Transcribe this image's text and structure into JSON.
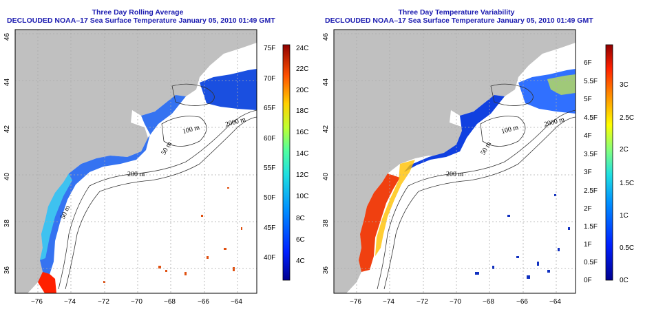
{
  "left": {
    "title": "Three Day Rolling Average",
    "subtitle": "DECLOUDED NOAA–17 Sea Surface Temperature January 05, 2010 01:49 GMT",
    "contour_labels": [
      "100 m",
      "2000 m",
      "50 m",
      "200 m",
      "50 m"
    ],
    "colorbar": {
      "fahrenheit": [
        "75F",
        "70F",
        "65F",
        "60F",
        "55F",
        "50F",
        "45F",
        "40F"
      ],
      "celsius": [
        "24C",
        "22C",
        "20C",
        "18C",
        "16C",
        "14C",
        "12C",
        "10C",
        "8C",
        "6C",
        "4C"
      ]
    }
  },
  "right": {
    "title": "Three Day Temperature Variability",
    "subtitle": "DECLOUDED NOAA–17 Sea Surface Temperature January 05, 2010 01:49 GMT",
    "contour_labels": [
      "100 m",
      "2000 m",
      "50 m",
      "200 m"
    ],
    "colorbar": {
      "fahrenheit": [
        "6F",
        "5.5F",
        "5F",
        "4.5F",
        "4F",
        "3.5F",
        "3F",
        "2.5F",
        "2F",
        "1.5F",
        "1F",
        "0.5F",
        "0F"
      ],
      "celsius": [
        "3C",
        "2.5C",
        "2C",
        "1.5C",
        "1C",
        "0.5C",
        "0C"
      ]
    }
  },
  "axes": {
    "lon_ticks": [
      "−76",
      "−74",
      "−72",
      "−70",
      "−68",
      "−66",
      "−64"
    ],
    "lat_ticks": [
      "46",
      "44",
      "42",
      "40",
      "38",
      "36"
    ]
  },
  "colors": {
    "title": "#1b1bb0",
    "land": "#c0c0c0",
    "ocean": "#ffffff"
  }
}
